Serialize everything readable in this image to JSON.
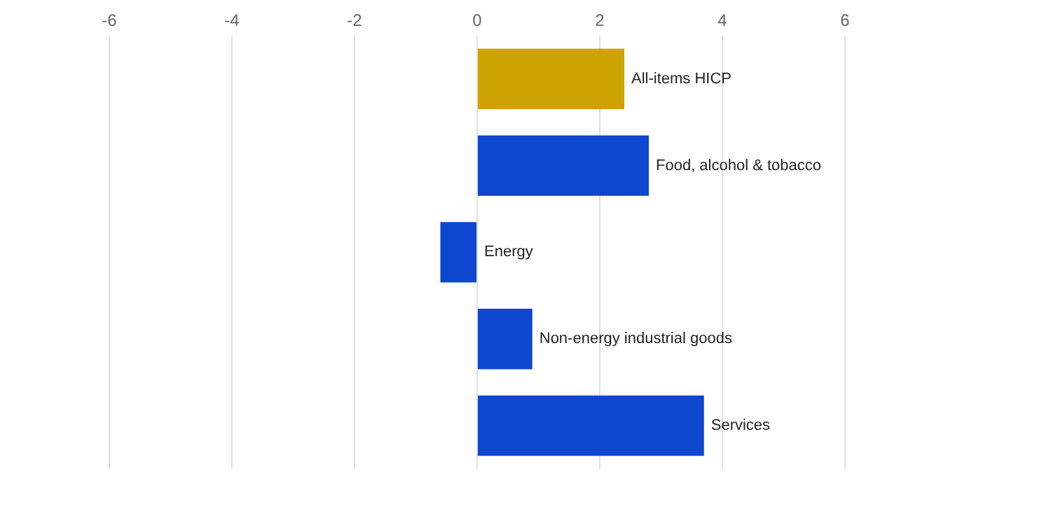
{
  "chart_data": {
    "type": "bar",
    "orientation": "horizontal",
    "categories": [
      "All-items HICP",
      "Food, alcohol & tobacco",
      "Energy",
      "Non-energy industrial goods",
      "Services"
    ],
    "values": [
      2.4,
      2.8,
      -0.6,
      0.9,
      3.7
    ],
    "colors": [
      "#cca300",
      "#0d47d0",
      "#0d47d0",
      "#0d47d0",
      "#0d47d0"
    ],
    "xlim": [
      -6,
      6
    ],
    "xticks": [
      -6,
      -4,
      -2,
      0,
      2,
      4,
      6
    ],
    "grid": "x",
    "legend": false
  }
}
